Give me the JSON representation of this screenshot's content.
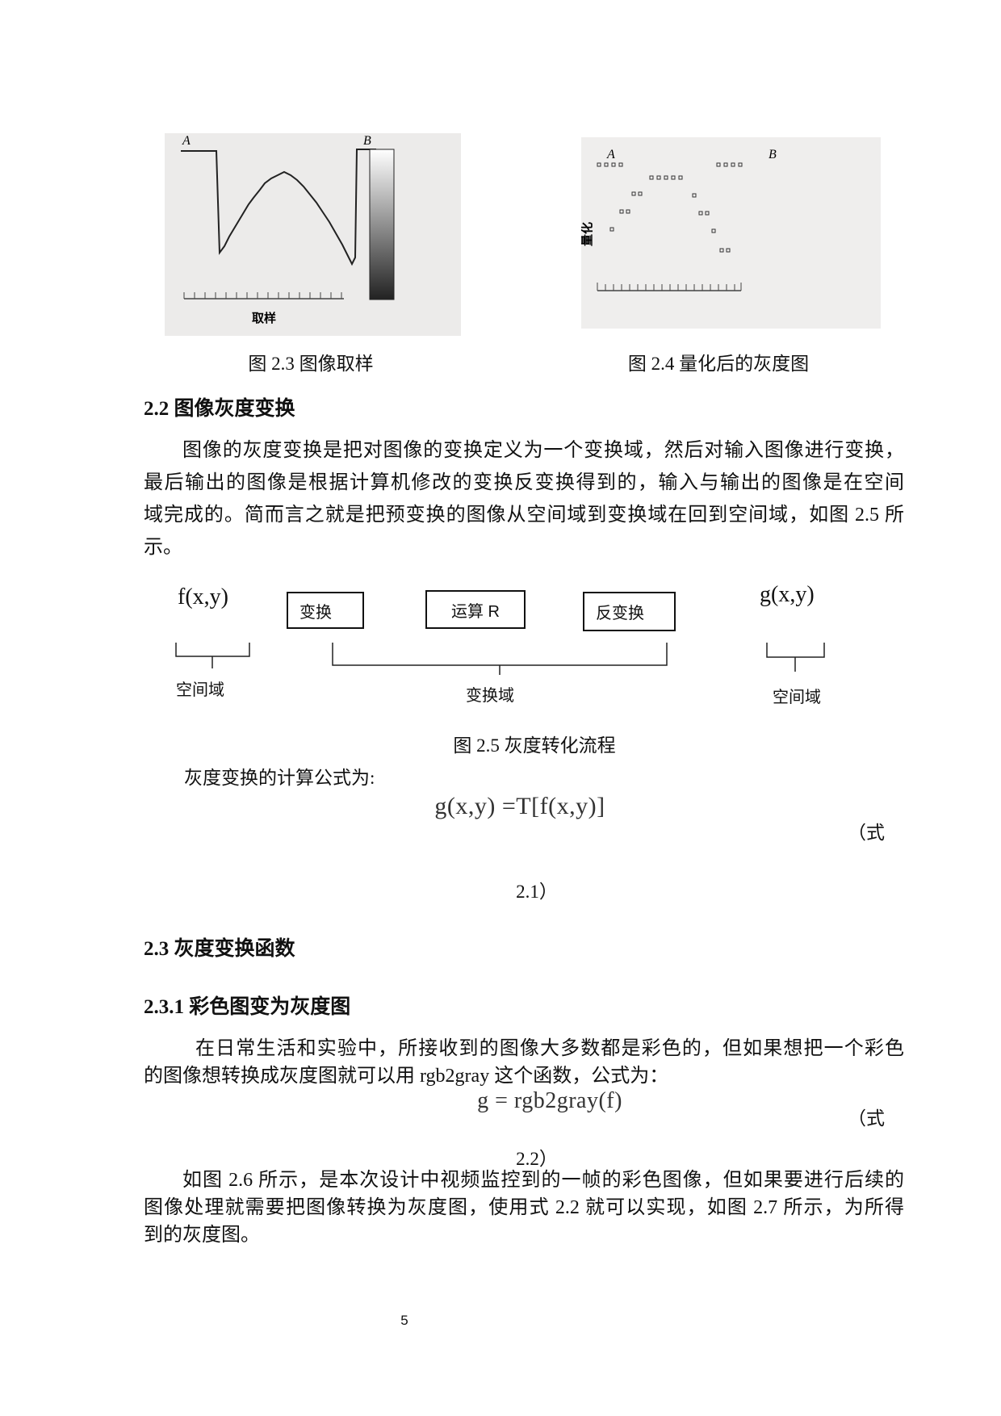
{
  "figures": {
    "fig_2_3": {
      "label_a": "A",
      "label_b": "B",
      "xlabel": "取样",
      "caption": "图 2.3 图像取样"
    },
    "fig_2_4": {
      "label_a": "A",
      "label_b": "B",
      "ylabel": "量化",
      "caption": "图 2.4 量化后的灰度图"
    }
  },
  "section_2_2": {
    "heading": "2.2 图像灰度变换",
    "paragraph_lines": [
      "图像的灰度变换是把对图像的变换定义为一个变换域，然后对输入图像进行变换，",
      "最后输出的图像是根据计算机修改的变换反变换得到的，输入与输出的图像是在空间",
      "域完成的。简而言之就是把预变换的图像从空间域到变换域在回到空间域，如图 2.5 所",
      "示。"
    ]
  },
  "diagram": {
    "input": "f(x,y)",
    "output": "g(x,y)",
    "boxes": [
      "变换",
      "运算 R",
      "反变换"
    ],
    "brace_labels": [
      "空间域",
      "变换域",
      "空间域"
    ],
    "caption": "图 2.5 灰度转化流程"
  },
  "formula_2_1": {
    "intro": "灰度变换的计算公式为:",
    "expression": "g(x,y) =T[f(x,y)]",
    "label_part1": "（式",
    "label_part2": "2.1）"
  },
  "section_2_3": {
    "heading": "2.3 灰度变换函数"
  },
  "section_2_3_1": {
    "heading": "2.3.1 彩色图变为灰度图",
    "paragraph_lines": [
      "在日常生活和实验中，所接收到的图像大多数都是彩色的，但如果想把一个彩色",
      "的图像想转换成灰度图就可以用 rgb2gray 这个函数，公式为："
    ],
    "formula": "g = rgb2gray(f)",
    "label_part1": "（式",
    "label_part2": "2.2）",
    "paragraph2_lines": [
      "如图 2.6 所示，是本次设计中视频监控到的一帧的彩色图像，但如果要进行后续的",
      "图像处理就需要把图像转换为灰度图，使用式 2.2 就可以实现，如图 2.7 所示，为所得",
      "到的灰度图。"
    ]
  },
  "page_number": "5"
}
